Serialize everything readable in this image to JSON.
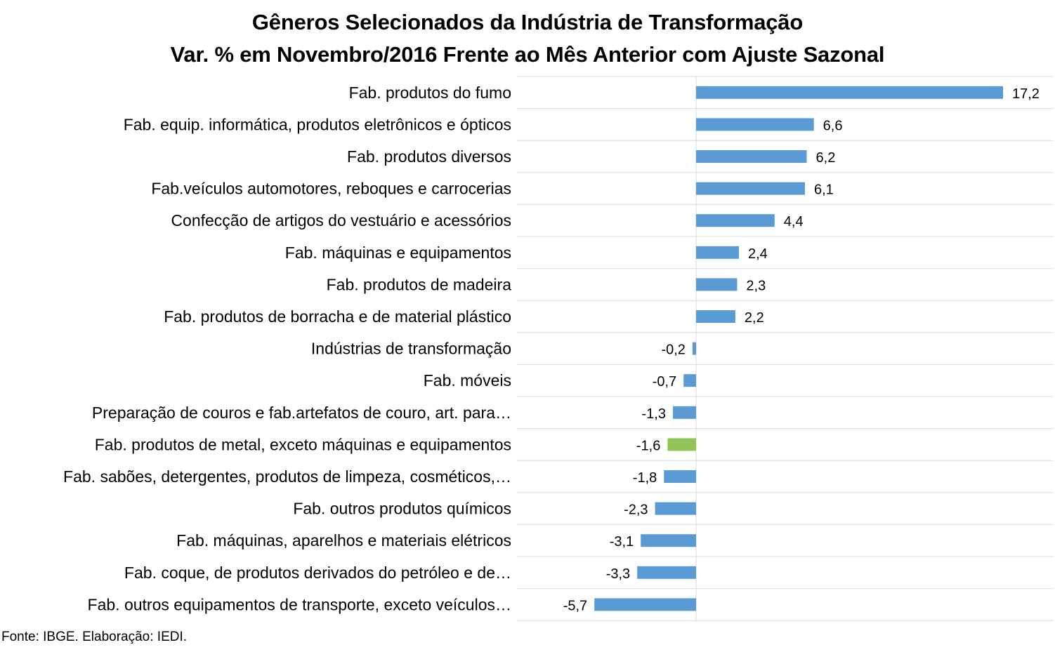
{
  "chart_data": {
    "type": "bar",
    "orientation": "horizontal",
    "title": "Gêneros Selecionados da Indústria de Transformação",
    "subtitle": "Var. % em Novembro/2016 Frente ao Mês Anterior com Ajuste Sazonal",
    "categories": [
      "Fab. produtos do fumo",
      "Fab. equip. informática, produtos eletrônicos e ópticos",
      "Fab. produtos diversos",
      "Fab.veículos automotores, reboques e carrocerias",
      "Confecção de artigos do vestuário e acessórios",
      "Fab. máquinas e equipamentos",
      "Fab. produtos de madeira",
      "Fab. produtos de borracha e de material plástico",
      "Indústrias de transformação",
      "Fab. móveis",
      "Preparação de couros e fab.artefatos de couro, art. para…",
      "Fab. produtos de metal, exceto máquinas e equipamentos",
      "Fab. sabões, detergentes, produtos de limpeza, cosméticos,…",
      "Fab. outros produtos químicos",
      "Fab. máquinas, aparelhos e materiais elétricos",
      "Fab. coque, de produtos derivados do petróleo e de…",
      "Fab. outros equipamentos de transporte, exceto veículos…"
    ],
    "values": [
      17.2,
      6.6,
      6.2,
      6.1,
      4.4,
      2.4,
      2.3,
      2.2,
      -0.2,
      -0.7,
      -1.3,
      -1.6,
      -1.8,
      -2.3,
      -3.1,
      -3.3,
      -5.7
    ],
    "value_labels": [
      "17,2",
      "6,6",
      "6,2",
      "6,1",
      "4,4",
      "2,4",
      "2,3",
      "2,2",
      "-0,2",
      "-0,7",
      "-1,3",
      "-1,6",
      "-1,8",
      "-2,3",
      "-3,1",
      "-3,3",
      "-5,7"
    ],
    "highlight_index": 11,
    "colors": {
      "bar": "#5b9bd5",
      "highlight": "#92c557",
      "grid": "#d9d9d9"
    },
    "xlim": [
      -5.7,
      17.2
    ],
    "grid": true,
    "legend": "none"
  },
  "source": "Fonte: IBGE. Elaboração: IEDI."
}
